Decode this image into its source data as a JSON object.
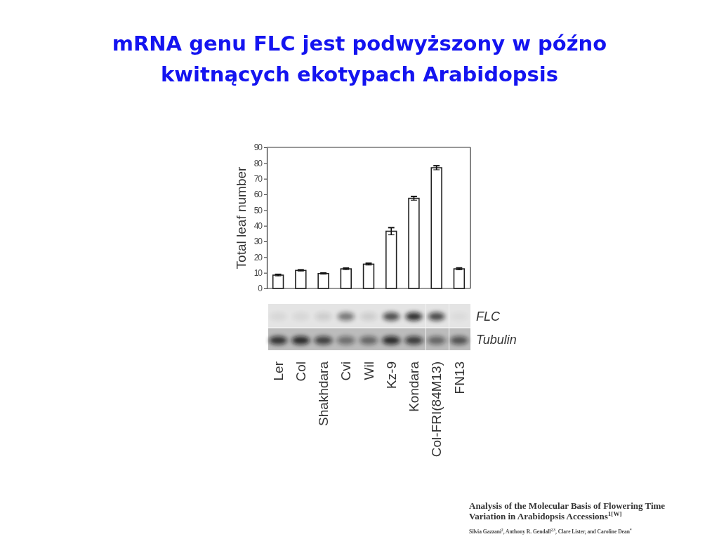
{
  "chart_data": {
    "type": "bar",
    "title": "mRNA genu FLC jest podwyższony w późno kwitnących ekotypach Arabidopsis",
    "ylabel": "Total leaf number",
    "categories": [
      "Ler",
      "Col",
      "Shakhdara",
      "Cvi",
      "Wil",
      "Kz-9",
      "Kondara",
      "Col-FRI(84M13)",
      "FN13"
    ],
    "values": [
      8.5,
      11.5,
      9.5,
      12.5,
      15.5,
      36.5,
      57.5,
      77,
      12.5
    ],
    "errors": [
      0.5,
      0.4,
      0.4,
      0.5,
      0.6,
      2.3,
      1.2,
      1.3,
      0.6
    ],
    "color": "#ffffff",
    "ylim": [
      0,
      90
    ],
    "yticks": [
      0,
      10,
      20,
      30,
      40,
      50,
      60,
      70,
      80,
      90
    ],
    "annotations": [
      "FLC",
      "Tubulin",
      "Analysis of the Molecular Basis of Flowering Time Variation in Arabidopsis Accessions$^{1[W]}$",
      "Silvia Gazzani$^{2}$, Anthony R. Gendall$^{2,3}$, Clare Lister, and Caroline Dean$^{*}$"
    ]
  }
}
